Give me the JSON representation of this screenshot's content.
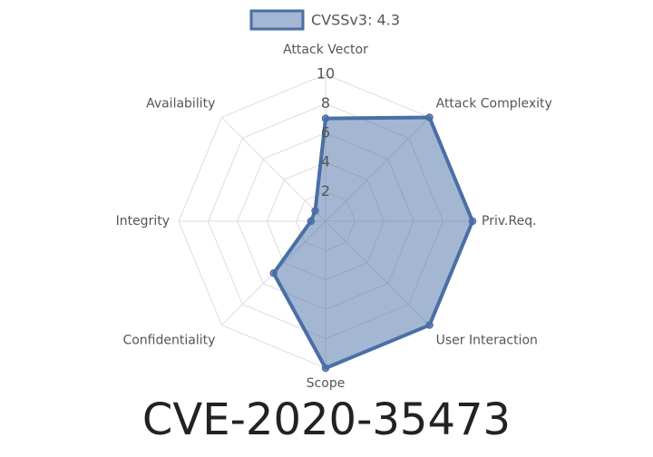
{
  "chart_data": {
    "type": "radar",
    "title": "CVE-2020-35473",
    "categories": [
      "Attack Vector",
      "Attack Complexity",
      "Priv.Req.",
      "User Interaction",
      "Scope",
      "Confidentiality",
      "Integrity",
      "Availability"
    ],
    "series": [
      {
        "name": "CVSSv3: 4.3",
        "color": "#4a6fa5",
        "values": [
          7,
          10,
          10,
          10,
          10,
          5,
          1,
          1
        ]
      }
    ],
    "ylim": [
      0,
      10
    ],
    "yticks": [
      2,
      4,
      6,
      8,
      10
    ],
    "grid": true
  }
}
